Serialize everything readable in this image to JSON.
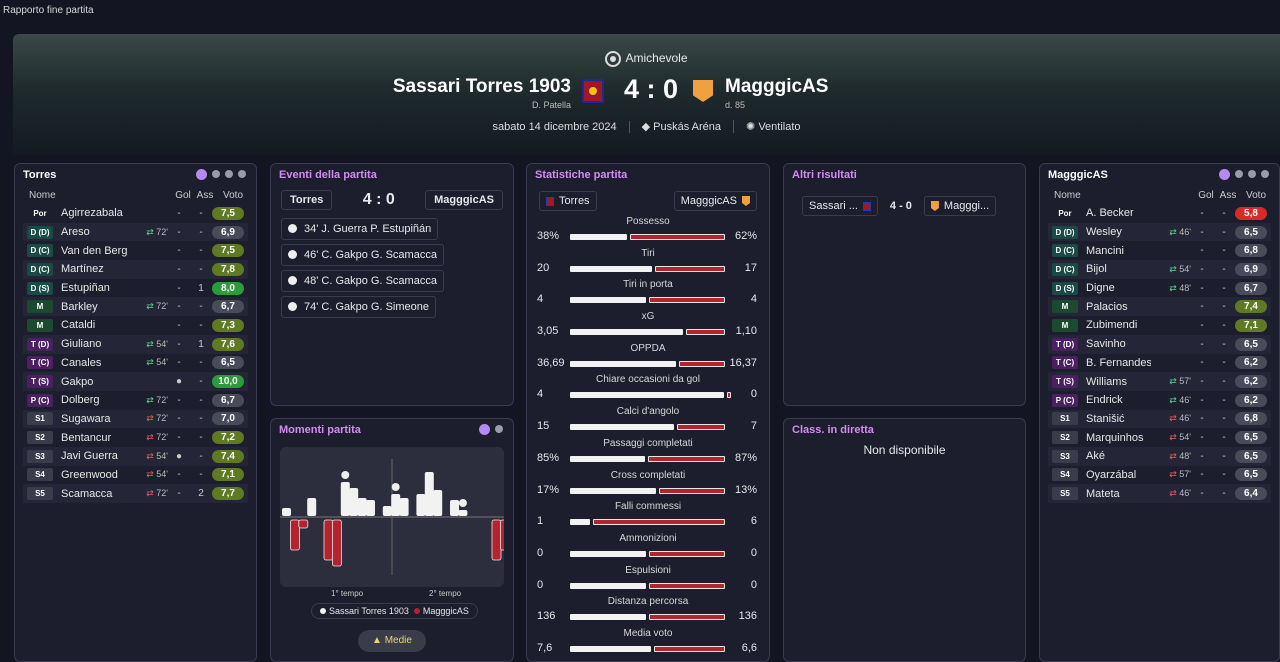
{
  "window": {
    "title": "Rapporto fine partita"
  },
  "match": {
    "competition": "Amichevole",
    "home": {
      "name": "Sassari Torres 1903",
      "coach": "D. Patella"
    },
    "away": {
      "name": "MagggicAS",
      "coach": "d. 85"
    },
    "score": "4 : 0",
    "date": "sabato 14 dicembre 2024",
    "stadium": "Puskás Aréna",
    "weather": "Ventilato"
  },
  "colors": {
    "accent": "#d58cf2",
    "home_bar": "#f2f2f2",
    "away_bar": "#b3242e",
    "rating_green": "#2c9c3a",
    "rating_olive": "#5e7a22",
    "rating_red": "#d92a2a"
  },
  "home_lineup": {
    "title": "Torres",
    "headers": {
      "name": "Nome",
      "gol": "Gol",
      "ass": "Ass",
      "voto": "Voto"
    },
    "players": [
      {
        "pos": "Por",
        "cls": "g",
        "name": "Agirrezabala",
        "sub": "",
        "subdir": "",
        "gol": "-",
        "ass": "-",
        "voto": "7,5",
        "vc": "v-olive"
      },
      {
        "pos": "D (D)",
        "cls": "d",
        "name": "Areso",
        "sub": "72'",
        "subdir": "in",
        "gol": "-",
        "ass": "-",
        "voto": "6,9",
        "vc": "v-grey"
      },
      {
        "pos": "D (C)",
        "cls": "d",
        "name": "Van den Berg",
        "sub": "",
        "subdir": "",
        "gol": "-",
        "ass": "-",
        "voto": "7,5",
        "vc": "v-olive"
      },
      {
        "pos": "D (C)",
        "cls": "d",
        "name": "Martínez",
        "sub": "",
        "subdir": "",
        "gol": "-",
        "ass": "-",
        "voto": "7,8",
        "vc": "v-olive"
      },
      {
        "pos": "D (S)",
        "cls": "d",
        "name": "Estupiñan",
        "sub": "",
        "subdir": "",
        "gol": "-",
        "ass": "1",
        "voto": "8,0",
        "vc": "v-green"
      },
      {
        "pos": "M",
        "cls": "m",
        "name": "Barkley",
        "sub": "72'",
        "subdir": "in",
        "gol": "-",
        "ass": "-",
        "voto": "6,7",
        "vc": "v-grey"
      },
      {
        "pos": "M",
        "cls": "m",
        "name": "Cataldi",
        "sub": "",
        "subdir": "",
        "gol": "-",
        "ass": "-",
        "voto": "7,3",
        "vc": "v-olive"
      },
      {
        "pos": "T (D)",
        "cls": "t",
        "name": "Giuliano",
        "sub": "54'",
        "subdir": "in",
        "gol": "-",
        "ass": "1",
        "voto": "7,6",
        "vc": "v-olive"
      },
      {
        "pos": "T (C)",
        "cls": "t",
        "name": "Canales",
        "sub": "54'",
        "subdir": "in",
        "gol": "-",
        "ass": "-",
        "voto": "6,5",
        "vc": "v-grey"
      },
      {
        "pos": "T (S)",
        "cls": "t",
        "name": "Gakpo",
        "sub": "",
        "subdir": "",
        "gol": "●",
        "ass": "-",
        "voto": "10,0",
        "vc": "v-green"
      },
      {
        "pos": "P (C)",
        "cls": "t",
        "name": "Dolberg",
        "sub": "72'",
        "subdir": "in",
        "gol": "-",
        "ass": "-",
        "voto": "6,7",
        "vc": "v-grey"
      },
      {
        "pos": "S1",
        "cls": "s",
        "name": "Sugawara",
        "sub": "72'",
        "subdir": "out",
        "gol": "-",
        "ass": "-",
        "voto": "7,0",
        "vc": "v-grey"
      },
      {
        "pos": "S2",
        "cls": "s",
        "name": "Bentancur",
        "sub": "72'",
        "subdir": "out",
        "gol": "-",
        "ass": "-",
        "voto": "7,2",
        "vc": "v-olive"
      },
      {
        "pos": "S3",
        "cls": "s",
        "name": "Javi Guerra",
        "sub": "54'",
        "subdir": "out",
        "gol": "●",
        "ass": "-",
        "voto": "7,4",
        "vc": "v-olive"
      },
      {
        "pos": "S4",
        "cls": "s",
        "name": "Greenwood",
        "sub": "54'",
        "subdir": "out",
        "gol": "-",
        "ass": "-",
        "voto": "7,1",
        "vc": "v-olive"
      },
      {
        "pos": "S5",
        "cls": "s",
        "name": "Scamacca",
        "sub": "72'",
        "subdir": "out",
        "gol": "-",
        "ass": "2",
        "voto": "7,7",
        "vc": "v-olive"
      }
    ]
  },
  "away_lineup": {
    "title": "MagggicAS",
    "headers": {
      "name": "Nome",
      "gol": "Gol",
      "ass": "Ass",
      "voto": "Voto"
    },
    "players": [
      {
        "pos": "Por",
        "cls": "g",
        "name": "A. Becker",
        "sub": "",
        "subdir": "",
        "gol": "-",
        "ass": "-",
        "voto": "5,8",
        "vc": "v-red"
      },
      {
        "pos": "D (D)",
        "cls": "d",
        "name": "Wesley",
        "sub": "46'",
        "subdir": "in",
        "gol": "-",
        "ass": "-",
        "voto": "6,5",
        "vc": "v-grey"
      },
      {
        "pos": "D (C)",
        "cls": "d",
        "name": "Mancini",
        "sub": "",
        "subdir": "",
        "gol": "-",
        "ass": "-",
        "voto": "6,8",
        "vc": "v-grey"
      },
      {
        "pos": "D (C)",
        "cls": "d",
        "name": "Bijol",
        "sub": "54'",
        "subdir": "in",
        "gol": "-",
        "ass": "-",
        "voto": "6,9",
        "vc": "v-grey"
      },
      {
        "pos": "D (S)",
        "cls": "d",
        "name": "Digne",
        "sub": "48'",
        "subdir": "in",
        "gol": "-",
        "ass": "-",
        "voto": "6,7",
        "vc": "v-grey"
      },
      {
        "pos": "M",
        "cls": "m",
        "name": "Palacios",
        "sub": "",
        "subdir": "",
        "gol": "-",
        "ass": "-",
        "voto": "7,4",
        "vc": "v-olive"
      },
      {
        "pos": "M",
        "cls": "m",
        "name": "Zubimendi",
        "sub": "",
        "subdir": "",
        "gol": "-",
        "ass": "-",
        "voto": "7,1",
        "vc": "v-olive"
      },
      {
        "pos": "T (D)",
        "cls": "t",
        "name": "Savinho",
        "sub": "",
        "subdir": "",
        "gol": "-",
        "ass": "-",
        "voto": "6,5",
        "vc": "v-grey"
      },
      {
        "pos": "T (C)",
        "cls": "t",
        "name": "B. Fernandes",
        "sub": "",
        "subdir": "",
        "gol": "-",
        "ass": "-",
        "voto": "6,2",
        "vc": "v-grey"
      },
      {
        "pos": "T (S)",
        "cls": "t",
        "name": "Williams",
        "sub": "57'",
        "subdir": "in",
        "gol": "-",
        "ass": "-",
        "voto": "6,2",
        "vc": "v-grey"
      },
      {
        "pos": "P (C)",
        "cls": "t",
        "name": "Endrick",
        "sub": "46'",
        "subdir": "in",
        "gol": "-",
        "ass": "-",
        "voto": "6,2",
        "vc": "v-grey"
      },
      {
        "pos": "S1",
        "cls": "s",
        "name": "Stanišić",
        "sub": "46'",
        "subdir": "out",
        "gol": "-",
        "ass": "-",
        "voto": "6,8",
        "vc": "v-grey"
      },
      {
        "pos": "S2",
        "cls": "s",
        "name": "Marquinhos",
        "sub": "54'",
        "subdir": "out",
        "gol": "-",
        "ass": "-",
        "voto": "6,5",
        "vc": "v-grey"
      },
      {
        "pos": "S3",
        "cls": "s",
        "name": "Aké",
        "sub": "48'",
        "subdir": "out",
        "gol": "-",
        "ass": "-",
        "voto": "6,5",
        "vc": "v-grey"
      },
      {
        "pos": "S4",
        "cls": "s",
        "name": "Oyarzábal",
        "sub": "57'",
        "subdir": "out",
        "gol": "-",
        "ass": "-",
        "voto": "6,5",
        "vc": "v-grey"
      },
      {
        "pos": "S5",
        "cls": "s",
        "name": "Mateta",
        "sub": "46'",
        "subdir": "out",
        "gol": "-",
        "ass": "-",
        "voto": "6,4",
        "vc": "v-grey"
      }
    ]
  },
  "events": {
    "title": "Eventi della partita",
    "home": "Torres",
    "away": "MagggicAS",
    "score": "4 : 0",
    "items": [
      "34' J. Guerra P. Estupiñán",
      "46' C. Gakpo G. Scamacca",
      "48' C. Gakpo G. Scamacca",
      "74' C. Gakpo G. Simeone"
    ]
  },
  "moments": {
    "title": "Momenti partita",
    "first_half": "1° tempo",
    "second_half": "2° tempo",
    "legend_home": "Sassari Torres 1903",
    "legend_away": "MagggicAS",
    "averages_button": "Medie"
  },
  "stats": {
    "title": "Statistiche partita",
    "home": "Torres",
    "away": "MagggicAS",
    "rows": [
      {
        "label": "Possesso",
        "home": "38%",
        "away": "62%",
        "h": 38,
        "a": 62
      },
      {
        "label": "Tiri",
        "home": "20",
        "away": "17",
        "h": 20,
        "a": 17
      },
      {
        "label": "Tiri in porta",
        "home": "4",
        "away": "4",
        "h": 4,
        "a": 4
      },
      {
        "label": "xG",
        "home": "3,05",
        "away": "1,10",
        "h": 3.05,
        "a": 1.1
      },
      {
        "label": "OPPDA",
        "home": "36,69",
        "away": "16,37",
        "h": 36.69,
        "a": 16.37
      },
      {
        "label": "Chiare occasioni da gol",
        "home": "4",
        "away": "0",
        "h": 4,
        "a": 0
      },
      {
        "label": "Calci d'angolo",
        "home": "15",
        "away": "7",
        "h": 15,
        "a": 7
      },
      {
        "label": "Passaggi completati",
        "home": "85%",
        "away": "87%",
        "h": 85,
        "a": 87
      },
      {
        "label": "Cross completati",
        "home": "17%",
        "away": "13%",
        "h": 17,
        "a": 13
      },
      {
        "label": "Falli commessi",
        "home": "1",
        "away": "6",
        "h": 1,
        "a": 6
      },
      {
        "label": "Ammonizioni",
        "home": "0",
        "away": "0",
        "h": 0,
        "a": 0
      },
      {
        "label": "Espulsioni",
        "home": "0",
        "away": "0",
        "h": 0,
        "a": 0
      },
      {
        "label": "Distanza percorsa",
        "home": "136",
        "away": "136",
        "h": 136,
        "a": 136
      },
      {
        "label": "Media voto",
        "home": "7,6",
        "away": "6,6",
        "h": 7.6,
        "a": 6.6
      }
    ]
  },
  "other_results": {
    "title": "Altri risultati",
    "home": "Sassari ...",
    "score": "4 - 0",
    "away": "Magggi..."
  },
  "live_table": {
    "title": "Class. in diretta",
    "message": "Non disponibile"
  }
}
